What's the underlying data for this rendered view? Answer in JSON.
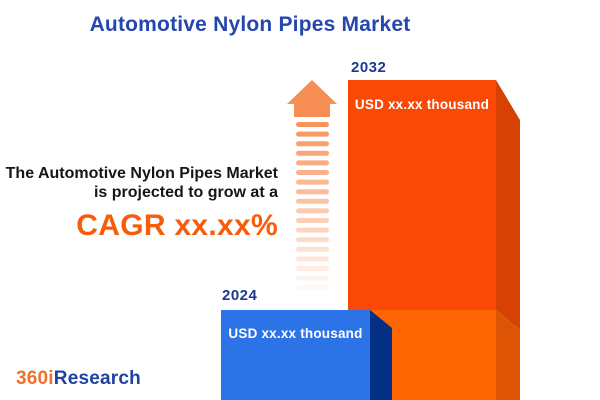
{
  "title": "Automotive Nylon Pipes Market",
  "description": {
    "line1": "The Automotive Nylon Pipes Market",
    "line2": "is projected to grow at a",
    "cagr": "CAGR xx.xx%"
  },
  "bars": {
    "b2024": {
      "year": "2024",
      "value_label": "USD xx.xx thousand"
    },
    "b2032": {
      "year": "2032",
      "value_label": "USD xx.xx thousand"
    }
  },
  "arrow": {
    "name": "growth-arrow-up",
    "dash_count": 18
  },
  "logo": {
    "prefix": "360i",
    "suffix": "Research"
  },
  "colors": {
    "background": "#FFFFFF",
    "title": "#2546AE",
    "year_label": "#1E3A8F",
    "body_text": "#161616",
    "cagr": "#F85C0A",
    "value_text": "#FFFFFF",
    "bar2032_front_upper": "#FA4905",
    "bar2032_front_lower": "#FD6603",
    "bar2032_side_upper": "#D64104",
    "bar2032_side_lower": "#DD5504",
    "bar2024_front": "#2D73E8",
    "bar2024_side": "#032F85",
    "arrow": "#F78E55",
    "logo_prefix": "#F2702E",
    "logo_suffix": "#1E41A5"
  },
  "chart_data": {
    "type": "bar",
    "title": "Automotive Nylon Pipes Market",
    "categories": [
      "2024",
      "2032"
    ],
    "values": [
      null,
      null
    ],
    "value_labels": [
      "USD xx.xx thousand",
      "USD xx.xx thousand"
    ],
    "annotations": [
      "The Automotive Nylon Pipes Market is projected to grow at a CAGR xx.xx%"
    ],
    "bar_colors": [
      "#2D73E8",
      "#FA4905"
    ],
    "axes_visible": false,
    "gridlines": false,
    "legend": false,
    "style": "3d-columns with growth arrow"
  }
}
